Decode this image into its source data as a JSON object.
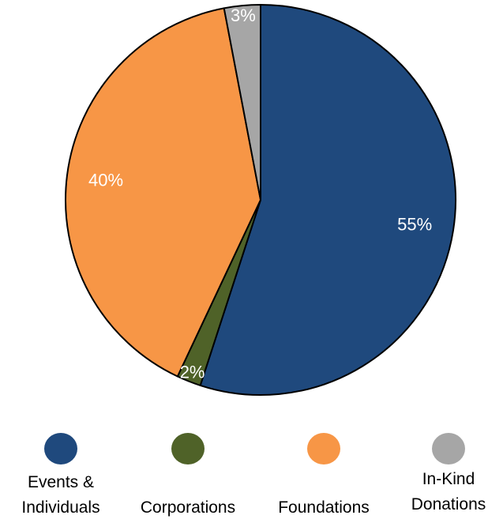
{
  "chart_data": {
    "type": "pie",
    "title": "",
    "slices": [
      {
        "name": "Events & Individuals",
        "value": 55,
        "label": "55%",
        "color": "#1f497d"
      },
      {
        "name": "Corporations",
        "value": 2,
        "label": "2%",
        "color": "#4f6228"
      },
      {
        "name": "Foundations",
        "value": 40,
        "label": "40%",
        "color": "#f79646"
      },
      {
        "name": "In-Kind Donations",
        "value": 3,
        "label": "3%",
        "color": "#a6a6a6"
      }
    ],
    "start_angle_deg": 0,
    "direction": "clockwise",
    "slice_border_color": "#000000",
    "legend_position": "bottom"
  },
  "legend": {
    "items": [
      {
        "line1": "Events &",
        "line2": "Individuals",
        "color": "#1f497d"
      },
      {
        "line1": "",
        "line2": "Corporations",
        "color": "#4f6228"
      },
      {
        "line1": "",
        "line2": "Foundations",
        "color": "#f79646"
      },
      {
        "line1": "In-Kind",
        "line2": "Donations",
        "color": "#a6a6a6"
      }
    ]
  }
}
